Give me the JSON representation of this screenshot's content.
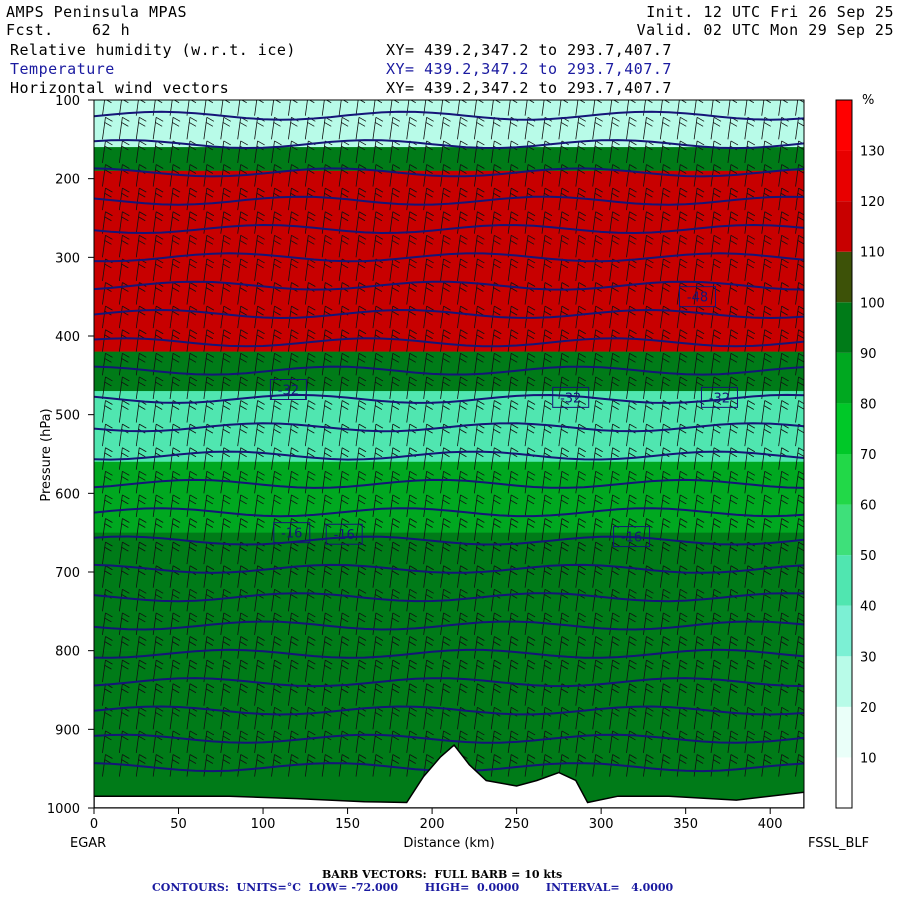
{
  "header": {
    "model": "AMPS Peninsula MPAS",
    "fcst_label": "Fcst.",
    "fcst_value": "62 h",
    "init": "Init. 12 UTC Fri 26 Sep 25",
    "valid": "Valid. 02 UTC Mon 29 Sep 25",
    "fields": [
      {
        "name": "Relative humidity (w.r.t. ice)",
        "xy": "XY= 439.2,347.2 to 293.7,407.7"
      },
      {
        "name": "Temperature",
        "xy": "XY= 439.2,347.2 to 293.7,407.7"
      },
      {
        "name": "Horizontal wind vectors",
        "xy": "XY= 439.2,347.2 to 293.7,407.7"
      }
    ]
  },
  "chart_data": {
    "type": "heatmap",
    "xlabel": "Distance (km)",
    "ylabel": "Pressure (hPa)",
    "xlim": [
      0,
      420
    ],
    "ylim": [
      1000,
      100
    ],
    "x_ticks": [
      0,
      50,
      100,
      150,
      200,
      250,
      300,
      350,
      400
    ],
    "y_ticks": [
      100,
      200,
      300,
      400,
      500,
      600,
      700,
      800,
      900,
      1000
    ],
    "left_endpoint": "EGAR",
    "right_endpoint": "FSSL_BLF",
    "colorbar": {
      "unit": "%",
      "labels": [
        10,
        20,
        30,
        40,
        50,
        60,
        70,
        80,
        90,
        100,
        110,
        120,
        130
      ],
      "colors": [
        "#ffffff",
        "#eafff9",
        "#b8fbe8",
        "#7cf0d4",
        "#50e6b0",
        "#3ee07a",
        "#22d848",
        "#00c828",
        "#00a820",
        "#007b18",
        "#3d5208",
        "#c80000",
        "#e80000",
        "#ff0000"
      ]
    },
    "rh_bands": [
      {
        "p_top": 100,
        "p_bot": 160,
        "rh": 20
      },
      {
        "p_top": 160,
        "p_bot": 190,
        "rh": 90
      },
      {
        "p_top": 190,
        "p_bot": 420,
        "rh": 112
      },
      {
        "p_top": 420,
        "p_bot": 470,
        "rh": 95
      },
      {
        "p_top": 470,
        "p_bot": 560,
        "rh": 40
      },
      {
        "p_top": 560,
        "p_bot": 650,
        "rh": 85
      },
      {
        "p_top": 650,
        "p_bot": 800,
        "rh": 90
      },
      {
        "p_top": 800,
        "p_bot": 1000,
        "rh": 95
      }
    ],
    "temperature_contours": {
      "units": "°C",
      "low": -72.0,
      "high": 0.0,
      "interval": 4.0,
      "labels": [
        {
          "text": "-32",
          "x": 115,
          "p": 468
        },
        {
          "text": "-32",
          "x": 282,
          "p": 478
        },
        {
          "text": "-32",
          "x": 370,
          "p": 478
        },
        {
          "text": "-16",
          "x": 117,
          "p": 650
        },
        {
          "text": "-16",
          "x": 148,
          "p": 652
        },
        {
          "text": "-16",
          "x": 318,
          "p": 655
        },
        {
          "text": "-48",
          "x": 357,
          "p": 350
        }
      ]
    },
    "terrain": [
      [
        0,
        985
      ],
      [
        40,
        985
      ],
      [
        80,
        985
      ],
      [
        120,
        988
      ],
      [
        160,
        992
      ],
      [
        185,
        993
      ],
      [
        195,
        960
      ],
      [
        205,
        935
      ],
      [
        213,
        920
      ],
      [
        222,
        945
      ],
      [
        232,
        965
      ],
      [
        250,
        972
      ],
      [
        262,
        965
      ],
      [
        275,
        955
      ],
      [
        285,
        965
      ],
      [
        292,
        993
      ],
      [
        310,
        985
      ],
      [
        340,
        985
      ],
      [
        380,
        990
      ],
      [
        420,
        980
      ]
    ],
    "footer_barb": "BARB VECTORS:  FULL BARB = 10 kts",
    "footer_contours": "CONTOURS:  UNITS=°C  LOW= -72.000       HIGH=  0.0000       INTERVAL=   4.0000"
  }
}
